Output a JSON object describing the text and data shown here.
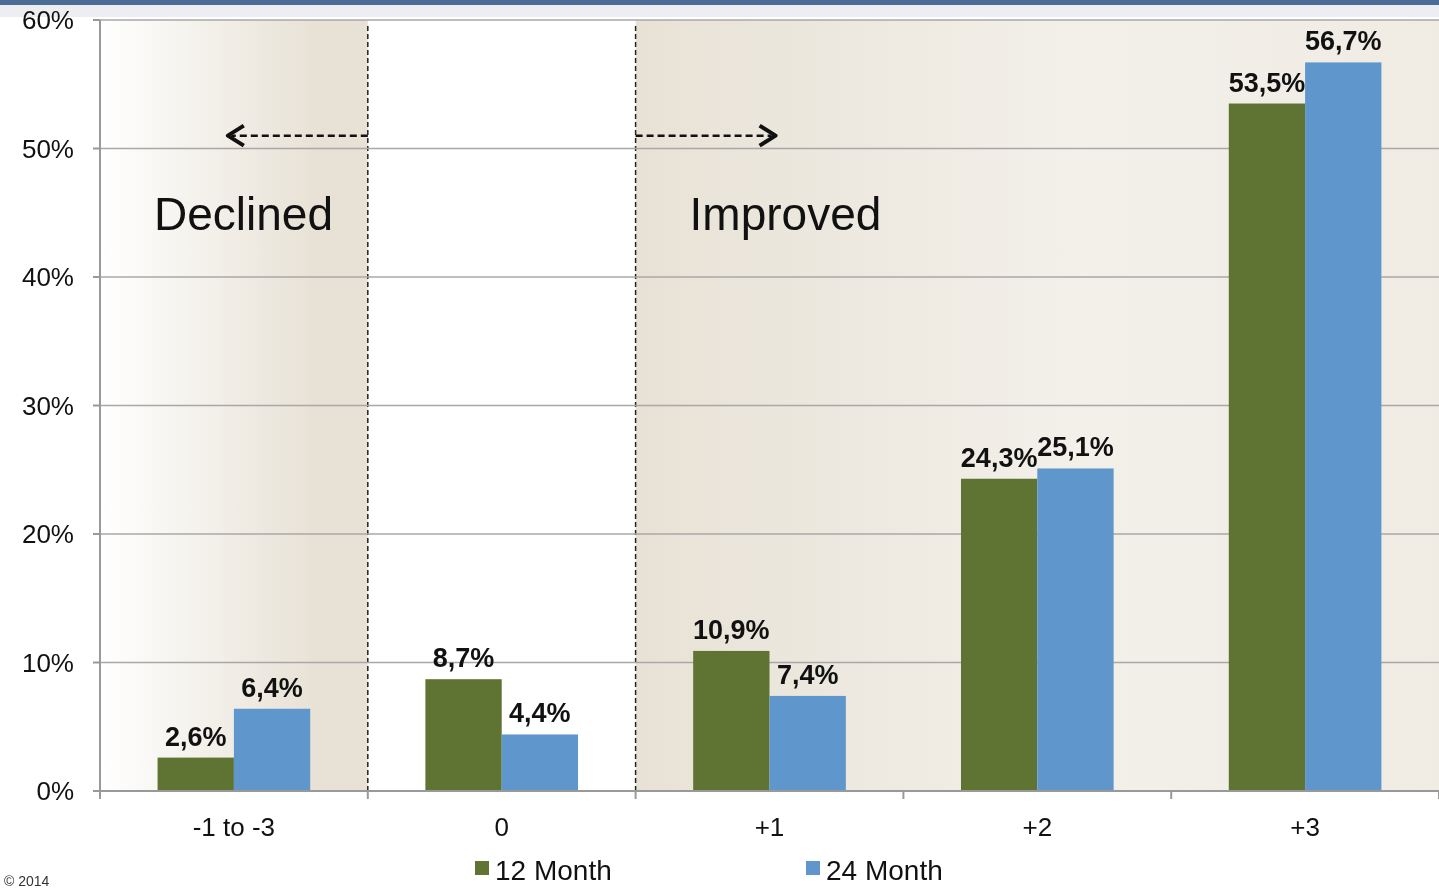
{
  "chart_data": {
    "type": "bar",
    "categories": [
      "-1 to -3",
      "0",
      "+1",
      "+2",
      "+3"
    ],
    "series": [
      {
        "name": "12 Month",
        "color": "#5f7332",
        "values": [
          2.6,
          8.7,
          10.9,
          24.3,
          53.5
        ],
        "value_labels": [
          "2,6%",
          "8,7%",
          "10,9%",
          "24,3%",
          "53,5%"
        ]
      },
      {
        "name": "24 Month",
        "color": "#5f96cc",
        "values": [
          6.4,
          4.4,
          7.4,
          25.1,
          56.7
        ],
        "value_labels": [
          "6,4%",
          "4,4%",
          "7,4%",
          "25,1%",
          "56,7%"
        ]
      }
    ],
    "ylim": [
      0,
      60
    ],
    "yticks": [
      {
        "value": 0,
        "label": "0%"
      },
      {
        "value": 10,
        "label": "10%"
      },
      {
        "value": 20,
        "label": "20%"
      },
      {
        "value": 30,
        "label": "30%"
      },
      {
        "value": 40,
        "label": "40%"
      },
      {
        "value": 50,
        "label": "50%"
      },
      {
        "value": 60,
        "label": "60%"
      }
    ],
    "grid": "y",
    "legend": "bottom",
    "bands": [
      {
        "axis": "x",
        "from": "-1 to -3",
        "to": "-1 to -3",
        "label": "Declined",
        "color": "#e8e2d6"
      },
      {
        "axis": "x",
        "from": "+1",
        "to": "+3",
        "label": "Improved",
        "color": "#e8e2d6"
      }
    ],
    "annotations": [
      "© 2014"
    ]
  }
}
